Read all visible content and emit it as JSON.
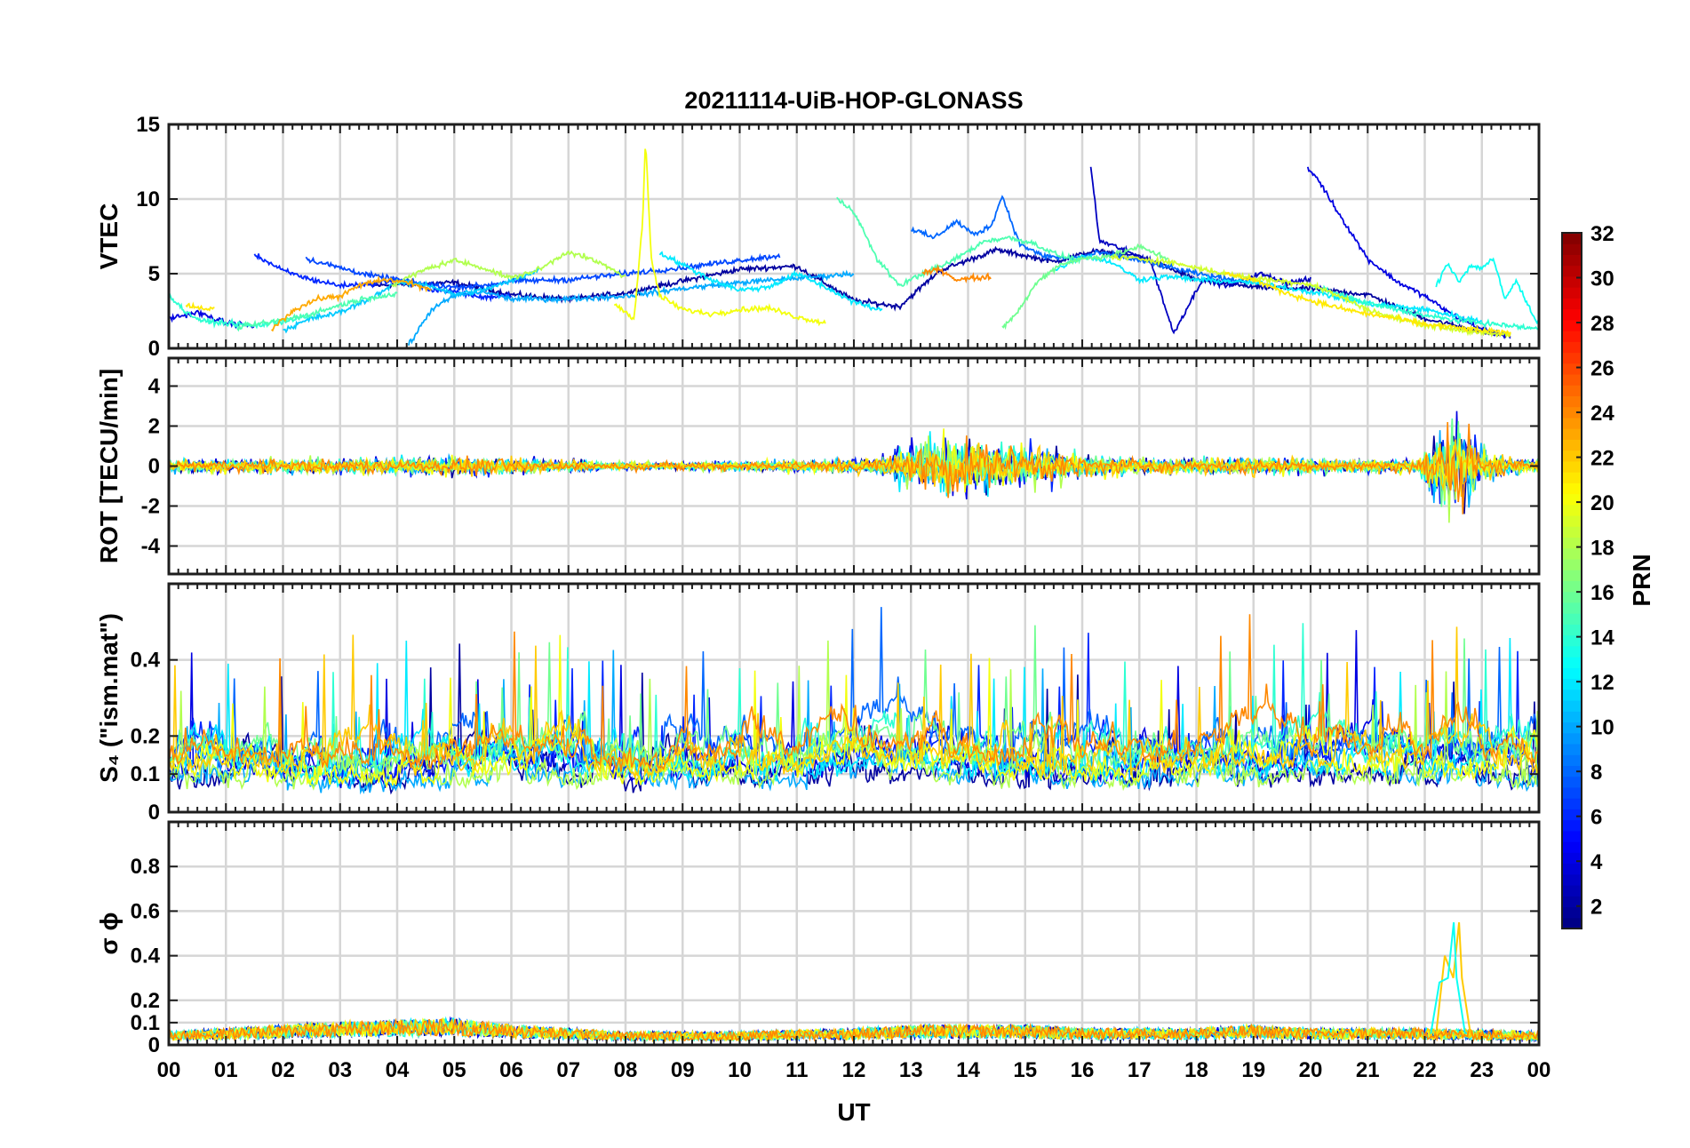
{
  "chart_data": {
    "type": "line",
    "title": "20211114-UiB-HOP-GLONASS",
    "xlabel": "UT",
    "x_range": [
      0,
      24
    ],
    "x_tick_labels": [
      "00",
      "01",
      "02",
      "03",
      "04",
      "05",
      "06",
      "07",
      "08",
      "09",
      "10",
      "11",
      "12",
      "13",
      "14",
      "15",
      "16",
      "17",
      "18",
      "19",
      "20",
      "21",
      "22",
      "23",
      "00"
    ],
    "panels": [
      {
        "id": "vtec",
        "ylabel": "VTEC",
        "ylim": [
          0,
          15
        ],
        "y_ticks": [
          0,
          5,
          10,
          15
        ],
        "y_tick_labels": [
          "0",
          "5",
          "10",
          "15"
        ],
        "grid": true,
        "series": [
          {
            "prn": 2,
            "x": [
              3.5,
              5,
              6,
              7,
              8,
              9,
              10,
              11,
              12,
              12.8,
              13.5,
              14.5,
              15.5,
              16.2,
              17,
              18,
              19,
              20,
              21,
              22,
              23,
              23.5
            ],
            "y": [
              4.2,
              4.4,
              3.6,
              3.3,
              3.7,
              4.5,
              5.3,
              5.5,
              3.2,
              2.8,
              5.2,
              6.6,
              5.8,
              6.5,
              6.2,
              4.6,
              4.1,
              4.0,
              3.6,
              2.0,
              1.1,
              0.8
            ]
          },
          {
            "prn": 4,
            "x": [
              0,
              0.5,
              1,
              1.5
            ],
            "y": [
              2.0,
              2.4,
              1.7,
              1.5
            ]
          },
          {
            "prn": 3,
            "x": [
              16.15,
              16.3,
              16.6,
              17.2,
              17.6,
              18.1,
              18.6,
              19.1,
              19.6,
              20.0
            ],
            "y": [
              12.2,
              7.2,
              6.8,
              5.8,
              1.0,
              4.6,
              4.2,
              5.0,
              4.4,
              4.6
            ]
          },
          {
            "prn": 4,
            "x": [
              19.95,
              20.1,
              20.5,
              21,
              21.5,
              22,
              22.5,
              23,
              23.5
            ],
            "y": [
              12.0,
              11.5,
              9.0,
              6.0,
              4.5,
              3.5,
              2.2,
              1.3,
              0.8
            ]
          },
          {
            "prn": 6,
            "x": [
              1.5,
              2,
              2.5,
              3,
              3.5,
              4,
              4.5,
              5,
              5.5,
              6
            ],
            "y": [
              6.3,
              5.2,
              4.6,
              4.2,
              4.3,
              4.6,
              4.0,
              3.8,
              3.4,
              3.6
            ]
          },
          {
            "prn": 7,
            "x": [
              2.4,
              3,
              3.5,
              4,
              4.5,
              5,
              5.5,
              6,
              7,
              8,
              9,
              10,
              10.7
            ],
            "y": [
              6.0,
              5.4,
              4.9,
              4.6,
              4.3,
              4.1,
              4.2,
              4.5,
              4.6,
              5.0,
              5.4,
              5.9,
              6.2
            ]
          },
          {
            "prn": 8,
            "x": [
              13,
              13.4,
              13.8,
              14.1,
              14.4,
              14.6,
              14.9,
              15.3,
              15.8,
              16.3,
              17,
              18,
              19
            ],
            "y": [
              8.0,
              7.4,
              8.5,
              7.6,
              8.2,
              10.2,
              7.0,
              6.2,
              6.0,
              6.4,
              5.9,
              5.0,
              4.4
            ]
          },
          {
            "prn": 10,
            "x": [
              4.2,
              4.6,
              5,
              5.5,
              6,
              7,
              8,
              9,
              10,
              11,
              12
            ],
            "y": [
              0.2,
              2.6,
              3.5,
              3.8,
              3.3,
              3.3,
              3.5,
              4.0,
              4.4,
              4.7,
              5.0
            ]
          },
          {
            "prn": 11,
            "x": [
              2.0,
              2.5,
              3,
              3.5,
              4,
              4.5,
              5,
              5.5,
              6,
              6.5
            ],
            "y": [
              1.2,
              2.0,
              2.4,
              3.3,
              4.4,
              4.3,
              3.6,
              3.9,
              4.5,
              5.3
            ]
          },
          {
            "prn": 12,
            "x": [
              15.5,
              16,
              16.5,
              17,
              17.5,
              18,
              19,
              20,
              21,
              22,
              23
            ],
            "y": [
              5.2,
              6.2,
              5.8,
              4.6,
              4.8,
              4.6,
              4.4,
              3.8,
              3.0,
              2.6,
              1.8
            ]
          },
          {
            "prn": 12,
            "x": [
              8.6,
              9,
              9.5,
              10,
              10.5,
              11,
              11.5,
              12,
              12.5
            ],
            "y": [
              6.4,
              5.6,
              4.6,
              3.9,
              4.1,
              5.0,
              4.1,
              3.1,
              2.5
            ]
          },
          {
            "prn": 13,
            "x": [
              22.2,
              22.4,
              22.6,
              22.8,
              23,
              23.2,
              23.4,
              23.6,
              23.8,
              24
            ],
            "y": [
              4.2,
              5.7,
              4.5,
              5.5,
              5.4,
              6.0,
              3.3,
              4.5,
              3.0,
              1.5
            ]
          },
          {
            "prn": 14,
            "x": [
              0,
              0.3,
              0.6,
              1,
              1.5,
              2,
              2.5
            ],
            "y": [
              3.6,
              2.4,
              1.8,
              1.7,
              1.5,
              1.8,
              2.2
            ]
          },
          {
            "prn": 14,
            "x": [
              20,
              20.5,
              21,
              21.5,
              22,
              22.5,
              23,
              23.5,
              24
            ],
            "y": [
              4.2,
              3.6,
              3.0,
              2.6,
              2.2,
              1.9,
              1.7,
              1.5,
              1.3
            ]
          },
          {
            "prn": 15,
            "x": [
              11.7,
              12,
              12.4,
              12.8,
              13.2,
              13.6,
              14,
              14.3,
              14.7,
              15.1,
              15.6,
              16
            ],
            "y": [
              10.0,
              9.2,
              6.0,
              4.2,
              5.0,
              5.6,
              6.5,
              7.2,
              7.4,
              7.1,
              6.2,
              5.9
            ]
          },
          {
            "prn": 15,
            "x": [
              1.2,
              2,
              2.5,
              3,
              3.5,
              4
            ],
            "y": [
              1.4,
              1.9,
              2.3,
              2.9,
              3.4,
              3.6
            ]
          },
          {
            "prn": 16,
            "x": [
              14.6,
              14.9,
              15.2,
              15.6,
              16,
              16.5,
              17,
              17.5
            ],
            "y": [
              1.3,
              2.6,
              4.4,
              5.6,
              6.0,
              6.2,
              6.8,
              6.0
            ]
          },
          {
            "prn": 18,
            "x": [
              3.9,
              4.5,
              5,
              5.5,
              6,
              6.5,
              7,
              7.5,
              8
            ],
            "y": [
              4.2,
              5.3,
              5.9,
              5.4,
              4.7,
              5.3,
              6.5,
              5.8,
              4.8
            ]
          },
          {
            "prn": 19,
            "x": [
              16.5,
              17,
              17.5,
              18,
              18.5,
              19,
              19.5,
              20,
              20.5,
              21,
              21.5,
              22,
              22.5,
              23,
              23.5
            ],
            "y": [
              6.1,
              6.0,
              5.8,
              5.4,
              5.0,
              4.7,
              4.5,
              4.3,
              3.5,
              2.6,
              2.0,
              1.6,
              1.3,
              1.0,
              0.9
            ]
          },
          {
            "prn": 20,
            "x": [
              7.8,
              8.15,
              8.3,
              8.35,
              8.45,
              8.6,
              9,
              9.5,
              10,
              10.5,
              11,
              11.5
            ],
            "y": [
              3.0,
              2.0,
              8.5,
              14.0,
              6.0,
              3.5,
              2.6,
              2.3,
              2.6,
              2.7,
              2.1,
              1.7
            ]
          },
          {
            "prn": 21,
            "x": [
              0.3,
              0.6,
              0.8
            ],
            "y": [
              2.9,
              2.7,
              2.6
            ]
          },
          {
            "prn": 21,
            "x": [
              18.5,
              19,
              19.5,
              20,
              20.5,
              21,
              21.5,
              22,
              22.5,
              23,
              23.5
            ],
            "y": [
              5.0,
              4.6,
              3.8,
              3.2,
              2.7,
              2.3,
              2.0,
              1.6,
              1.4,
              1.2,
              1.0
            ]
          },
          {
            "prn": 23,
            "x": [
              1.8,
              2.2,
              2.6,
              3,
              3.4,
              3.8,
              4.2,
              4.6
            ],
            "y": [
              1.3,
              2.6,
              3.3,
              3.5,
              4.3,
              4.6,
              4.4,
              3.9
            ]
          },
          {
            "prn": 24,
            "x": [
              13.2,
              13.5,
              13.8,
              14.1,
              14.4
            ],
            "y": [
              5.0,
              5.3,
              4.6,
              4.7,
              4.8
            ]
          }
        ]
      },
      {
        "id": "rot",
        "ylabel": "ROT [TECU/min]",
        "ylim": [
          -5.4,
          5.4
        ],
        "y_ticks": [
          -4,
          -2,
          0,
          2,
          4
        ],
        "y_tick_labels": [
          "-4",
          "-2",
          "0",
          "2",
          "4"
        ],
        "grid": true,
        "noise_profile": {
          "x": [
            0,
            3,
            5,
            8,
            10,
            11.5,
            12.5,
            13,
            13.5,
            14,
            15,
            16,
            18,
            19,
            20,
            21,
            21.9,
            22.2,
            22.6,
            23,
            23.5,
            24
          ],
          "amplitude": [
            0.25,
            0.3,
            0.4,
            0.15,
            0.2,
            0.25,
            0.4,
            0.9,
            1.3,
            1.1,
            0.9,
            0.45,
            0.3,
            0.35,
            0.3,
            0.25,
            0.3,
            1.6,
            2.0,
            0.8,
            0.3,
            0.25
          ]
        },
        "prns": [
          2,
          4,
          6,
          10,
          12,
          14,
          16,
          18,
          20,
          22,
          24
        ]
      },
      {
        "id": "s4",
        "ylabel": "S₄ (\"ism.mat\")",
        "ylim": [
          0,
          0.6
        ],
        "y_ticks": [
          0,
          0.1,
          0.2,
          0.4
        ],
        "y_tick_labels": [
          "0",
          "0.1",
          "0.2",
          "0.4"
        ],
        "grid": true,
        "baseline_profile": {
          "x": [
            0,
            1,
            2,
            3,
            4,
            5,
            6,
            7,
            8,
            9,
            10,
            11,
            12,
            13,
            14,
            15,
            16,
            17,
            18,
            19,
            20,
            21,
            22,
            23,
            24
          ],
          "level": [
            0.12,
            0.14,
            0.12,
            0.1,
            0.1,
            0.12,
            0.16,
            0.14,
            0.1,
            0.12,
            0.14,
            0.12,
            0.16,
            0.16,
            0.14,
            0.12,
            0.12,
            0.12,
            0.14,
            0.14,
            0.14,
            0.15,
            0.14,
            0.14,
            0.12
          ]
        },
        "prns": [
          2,
          4,
          6,
          8,
          10,
          12,
          14,
          16,
          18,
          20,
          22,
          24
        ]
      },
      {
        "id": "sigma_phi",
        "ylabel": "σ ϕ",
        "ylim": [
          0,
          1
        ],
        "y_ticks": [
          0,
          0.1,
          0.2,
          0.4,
          0.6,
          0.8
        ],
        "y_tick_labels": [
          "0",
          "0.1",
          "0.2",
          "0.4",
          "0.6",
          "0.8"
        ],
        "grid": true,
        "spike": {
          "x": [
            22.2,
            22.35,
            22.5,
            22.6,
            22.65,
            22.8
          ],
          "y": [
            0.05,
            0.4,
            0.3,
            0.55,
            0.3,
            0.05
          ]
        },
        "baseline_profile": {
          "x": [
            0,
            2,
            3,
            5,
            6,
            8,
            10,
            12,
            13,
            15,
            16,
            18,
            19,
            20,
            22,
            24
          ],
          "level": [
            0.04,
            0.06,
            0.07,
            0.08,
            0.06,
            0.04,
            0.04,
            0.05,
            0.06,
            0.06,
            0.05,
            0.05,
            0.06,
            0.05,
            0.05,
            0.04
          ]
        },
        "prns": [
          2,
          4,
          8,
          12,
          14,
          16,
          20,
          22,
          24
        ]
      }
    ],
    "colorbar": {
      "label": "PRN",
      "range": [
        1,
        32
      ],
      "ticks": [
        2,
        4,
        6,
        8,
        10,
        12,
        14,
        16,
        18,
        20,
        22,
        24,
        26,
        28,
        30,
        32
      ],
      "colormap": "jet"
    }
  }
}
